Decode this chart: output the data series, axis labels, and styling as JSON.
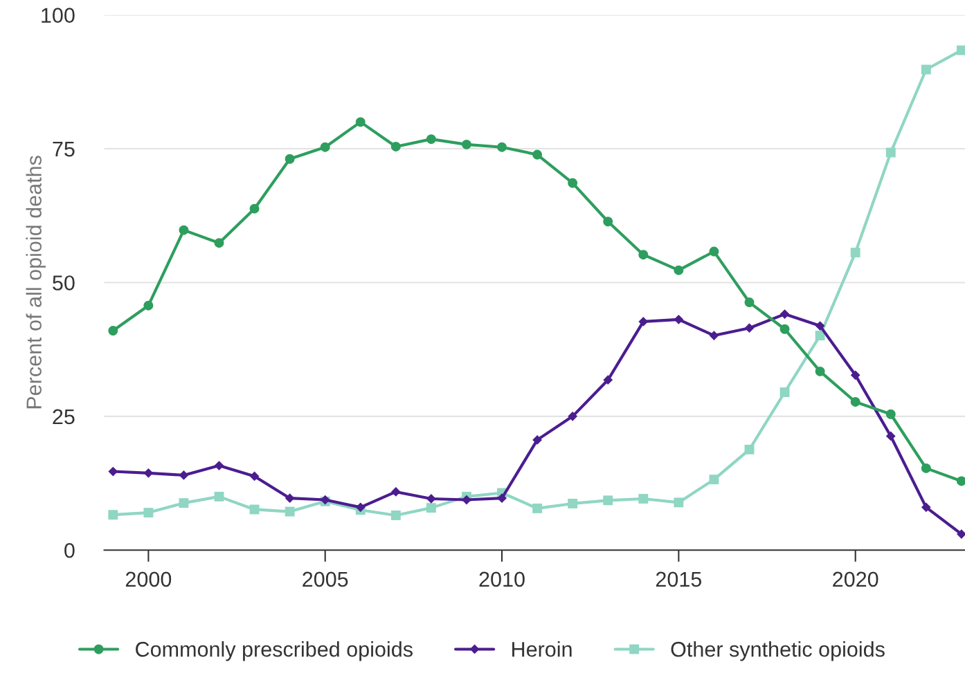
{
  "chart_data": {
    "type": "line",
    "ylabel": "Percent of all opioid deaths",
    "x": [
      1999,
      2000,
      2001,
      2002,
      2003,
      2004,
      2005,
      2006,
      2007,
      2008,
      2009,
      2010,
      2011,
      2012,
      2013,
      2014,
      2015,
      2016,
      2017,
      2018,
      2019,
      2020,
      2021,
      2022,
      2023
    ],
    "series": [
      {
        "name": "Commonly prescribed opioids",
        "color": "#2e9e5e",
        "marker": "circle",
        "values": [
          41,
          45.7,
          59.8,
          57.4,
          63.8,
          73.1,
          75.3,
          80,
          75.4,
          76.8,
          75.8,
          75.3,
          73.9,
          68.6,
          61.4,
          55.2,
          52.3,
          55.8,
          46.3,
          41.3,
          33.4,
          27.7,
          25.4,
          15.3,
          12.9
        ]
      },
      {
        "name": "Heroin",
        "color": "#4b1d8f",
        "marker": "diamond",
        "values": [
          14.7,
          14.4,
          14,
          15.8,
          13.8,
          9.7,
          9.4,
          8,
          10.9,
          9.6,
          9.4,
          9.7,
          20.6,
          25,
          31.8,
          42.7,
          43.1,
          40.1,
          41.5,
          44.1,
          41.9,
          32.7,
          21.3,
          8,
          3
        ]
      },
      {
        "name": "Other synthetic opioids",
        "color": "#8fd6c3",
        "marker": "square",
        "values": [
          6.6,
          7,
          8.8,
          10,
          7.6,
          7.2,
          9.1,
          7.5,
          6.5,
          7.9,
          10,
          10.7,
          7.8,
          8.7,
          9.3,
          9.6,
          8.9,
          13.2,
          18.8,
          29.5,
          40.1,
          55.6,
          74.3,
          89.8,
          93.4
        ]
      }
    ],
    "xlim": [
      1998.75,
      2023.1
    ],
    "xticks": [
      2000,
      2005,
      2010,
      2015,
      2020
    ],
    "ylim": [
      0,
      100
    ],
    "yticks": [
      0,
      25,
      50,
      75,
      100
    ],
    "grid": "y",
    "legend": "bottom",
    "line_style": "solid"
  }
}
